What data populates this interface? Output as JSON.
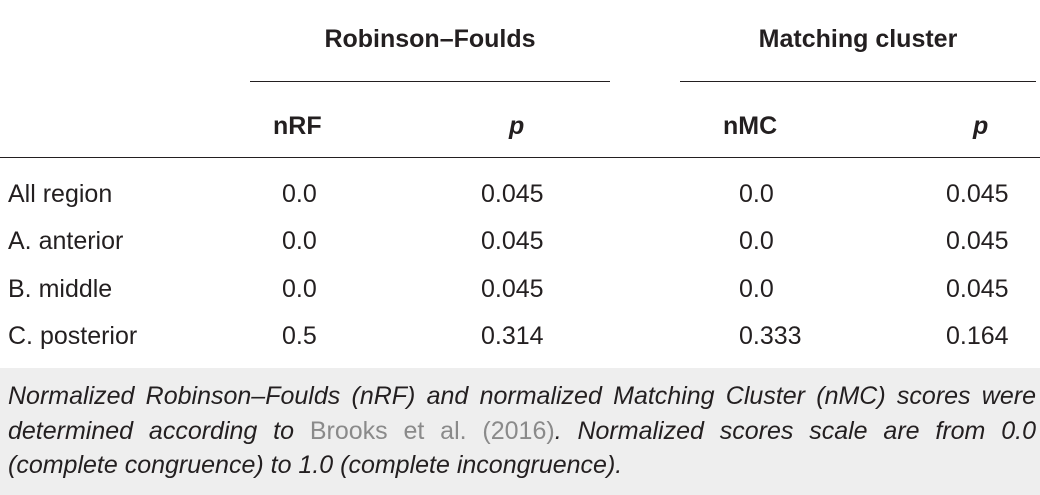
{
  "table": {
    "group_headers": {
      "robinson_foulds": "Robinson–Foulds",
      "matching_cluster": "Matching cluster"
    },
    "column_headers": {
      "nrf": "nRF",
      "rf_p": "p",
      "nmc": "nMC",
      "mc_p": "p"
    },
    "rows": [
      {
        "label": "All region",
        "nrf": "0.0",
        "rf_p": "0.045",
        "nmc": "0.0",
        "mc_p": "0.045"
      },
      {
        "label": "A. anterior",
        "nrf": "0.0",
        "rf_p": "0.045",
        "nmc": "0.0",
        "mc_p": "0.045"
      },
      {
        "label": "B. middle",
        "nrf": "0.0",
        "rf_p": "0.045",
        "nmc": "0.0",
        "mc_p": "0.045"
      },
      {
        "label": "C. posterior",
        "nrf": "0.5",
        "rf_p": "0.314",
        "nmc": "0.333",
        "mc_p": "0.164"
      }
    ]
  },
  "footnote": {
    "before_link": "Normalized Robinson–Foulds (nRF) and normalized Matching Cluster (nMC) scores were determined according to ",
    "link_text": "Brooks et al. (2016)",
    "after_link": ". Normalized scores scale are from 0.0 (complete congruence) to 1.0 (complete incongruence)."
  },
  "colors": {
    "text": "#231f20",
    "footer_background": "#eeeeee",
    "link": "#8a8a8a"
  }
}
